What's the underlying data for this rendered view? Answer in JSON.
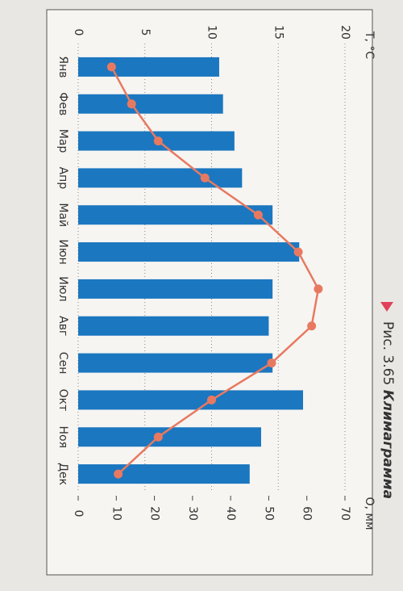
{
  "chart_data": {
    "type": "bar",
    "figure_label": "Рис. 3.65",
    "title": "Климаграмма",
    "ylabel": "T, °C",
    "y2label": "O, мм",
    "categories": [
      "Янв",
      "Фев",
      "Мар",
      "Апр",
      "Май",
      "Июн",
      "Июл",
      "Авг",
      "Сен",
      "Окт",
      "Ноя",
      "Дек"
    ],
    "series": [
      {
        "type": "bar",
        "axis": "y2",
        "color": "#1b77c0",
        "values": [
          37,
          38,
          41,
          43,
          51,
          58,
          51,
          50,
          51,
          59,
          48,
          45
        ]
      },
      {
        "type": "line",
        "color": "#e87961",
        "values": [
          2.5,
          4,
          6,
          9.5,
          13.5,
          16.5,
          18,
          17.5,
          14.5,
          10,
          6,
          3
        ]
      }
    ],
    "ylim": [
      0,
      20
    ],
    "yticks": [
      0,
      5,
      10,
      15,
      20
    ],
    "y2lim": [
      0,
      70
    ],
    "y2ticks": [
      0,
      10,
      20,
      30,
      40,
      50,
      60,
      70
    ],
    "grid": true
  }
}
